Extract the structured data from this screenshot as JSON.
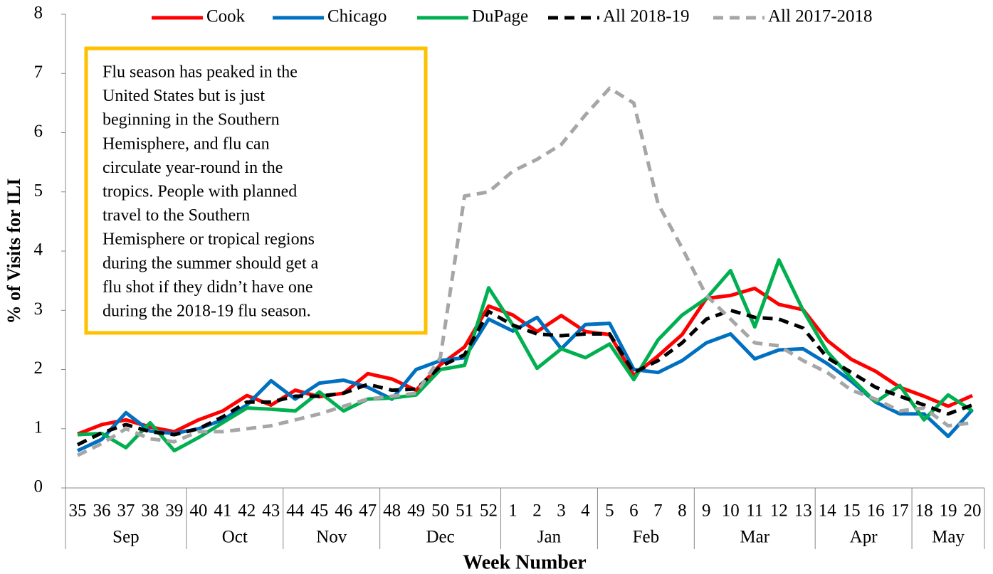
{
  "chart_data": {
    "type": "line",
    "y_label": "% of Visits for ILI",
    "x_label": "Week Number",
    "categories": [
      "35",
      "36",
      "37",
      "38",
      "39",
      "40",
      "41",
      "42",
      "43",
      "44",
      "45",
      "46",
      "47",
      "48",
      "49",
      "50",
      "51",
      "52",
      "1",
      "2",
      "3",
      "4",
      "5",
      "6",
      "7",
      "8",
      "9",
      "10",
      "11",
      "12",
      "13",
      "14",
      "15",
      "16",
      "17",
      "18",
      "19",
      "20"
    ],
    "months": [
      "Sep",
      null,
      null,
      null,
      null,
      "Oct",
      null,
      null,
      null,
      "Nov",
      null,
      null,
      null,
      "Dec",
      null,
      null,
      null,
      null,
      "Jan",
      null,
      null,
      null,
      "Feb",
      null,
      null,
      null,
      "Mar",
      null,
      null,
      null,
      null,
      "Apr",
      null,
      null,
      null,
      "May",
      null,
      null
    ],
    "ylim": [
      0,
      8
    ],
    "yticks": [
      0,
      1,
      2,
      3,
      4,
      5,
      6,
      7,
      8
    ],
    "grid": false,
    "legend": "top",
    "annotation": [
      "Flu season has peaked in the",
      "United States but is just",
      "beginning in the Southern",
      "Hemisphere, and flu can",
      "circulate year-round in the",
      "tropics. People with planned",
      "travel to the Southern",
      "Hemisphere or tropical regions",
      "during the summer should get a",
      "flu shot if they didn’t have one",
      "during the 2018-19 flu season."
    ],
    "series": [
      {
        "name": "Cook",
        "color": "#ff0000",
        "dashed": false,
        "values": [
          0.91,
          1.07,
          1.15,
          1.03,
          0.95,
          1.15,
          1.3,
          1.56,
          1.4,
          1.65,
          1.54,
          1.6,
          1.93,
          1.84,
          1.65,
          2.08,
          2.38,
          3.07,
          2.92,
          2.64,
          2.91,
          2.64,
          2.59,
          1.9,
          2.23,
          2.59,
          3.2,
          3.25,
          3.37,
          3.1,
          3.01,
          2.49,
          2.17,
          1.97,
          1.7,
          1.55,
          1.38,
          1.56
        ]
      },
      {
        "name": "Chicago",
        "color": "#0070c0",
        "dashed": false,
        "values": [
          0.63,
          0.82,
          1.27,
          0.96,
          0.92,
          1.0,
          1.15,
          1.4,
          1.81,
          1.5,
          1.77,
          1.82,
          1.7,
          1.5,
          2.0,
          2.15,
          2.2,
          2.85,
          2.65,
          2.88,
          2.35,
          2.76,
          2.78,
          2.0,
          1.95,
          2.15,
          2.45,
          2.6,
          2.18,
          2.33,
          2.35,
          2.1,
          1.8,
          1.45,
          1.25,
          1.25,
          0.87,
          1.32
        ]
      },
      {
        "name": "DuPage",
        "color": "#00b050",
        "dashed": false,
        "values": [
          0.9,
          0.92,
          0.68,
          1.1,
          0.63,
          0.85,
          1.1,
          1.35,
          1.33,
          1.3,
          1.62,
          1.3,
          1.5,
          1.52,
          1.57,
          2.0,
          2.07,
          3.38,
          2.75,
          2.02,
          2.35,
          2.2,
          2.43,
          1.83,
          2.5,
          2.92,
          3.2,
          3.67,
          2.72,
          3.85,
          3.0,
          2.3,
          1.85,
          1.45,
          1.73,
          1.15,
          1.57,
          1.3
        ]
      },
      {
        "name": "All 2018-19",
        "color": "#000000",
        "dashed": true,
        "values": [
          0.73,
          0.93,
          1.07,
          0.95,
          0.9,
          1.0,
          1.2,
          1.45,
          1.45,
          1.55,
          1.55,
          1.6,
          1.75,
          1.65,
          1.67,
          2.05,
          2.25,
          2.98,
          2.75,
          2.6,
          2.57,
          2.6,
          2.6,
          1.95,
          2.15,
          2.45,
          2.85,
          3.0,
          2.88,
          2.85,
          2.7,
          2.2,
          1.95,
          1.7,
          1.55,
          1.4,
          1.25,
          1.4
        ]
      },
      {
        "name": "All 2017-2018",
        "color": "#a6a6a6",
        "dashed": true,
        "values": [
          0.55,
          0.75,
          1.0,
          0.83,
          0.78,
          0.95,
          0.95,
          1.0,
          1.05,
          1.15,
          1.25,
          1.38,
          1.5,
          1.55,
          1.6,
          2.2,
          4.93,
          5.0,
          5.35,
          5.55,
          5.8,
          6.3,
          6.75,
          6.5,
          4.8,
          4.05,
          3.25,
          2.85,
          2.45,
          2.4,
          2.15,
          1.95,
          1.65,
          1.5,
          1.3,
          1.35,
          1.05,
          1.1
        ]
      }
    ]
  }
}
